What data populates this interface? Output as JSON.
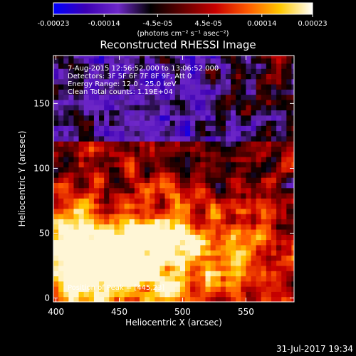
{
  "colorbar": {
    "ticks": [
      "-0.00023",
      "-0.00014",
      "-4.5e-05",
      "4.5e-05",
      "0.00014",
      "0.00023"
    ],
    "units": "(photons cm⁻² s⁻¹ asec⁻²)"
  },
  "colors": {
    "background": "#000000",
    "colormap_stops": [
      "#0000ff",
      "#3c00b4",
      "#6e28c8",
      "#000000",
      "#640000",
      "#c80000",
      "#ff5a00",
      "#ffc800",
      "#ffffff"
    ]
  },
  "chart_data": {
    "type": "heatmap",
    "title": "Reconstructed RHESSI Image",
    "xlabel": "Heliocentric X (arcsec)",
    "ylabel": "Heliocentric Y (arcsec)",
    "xlim": [
      398,
      588
    ],
    "ylim": [
      -3,
      187
    ],
    "x_ticks": [
      400,
      450,
      500,
      550
    ],
    "y_ticks": [
      0,
      50,
      100,
      150
    ],
    "x_tick_labels": [
      "400",
      "450",
      "500",
      "550"
    ],
    "y_tick_labels": [
      "0",
      "50",
      "100",
      "150"
    ],
    "value_range": [
      -0.00023,
      0.00023
    ],
    "annotations": [
      "7-Aug-2015 12:56:52.000 to 13:06:52.000",
      "Detectors: 3F 5F 6F 7F 8F 9F, Att 0",
      "Energy Range: 12.0 - 25.0 keV",
      "Clean     Total counts: 1.19E+04"
    ],
    "peak_label": "Position of Peak = [445,23]",
    "peak": [
      445,
      23
    ]
  },
  "footer": {
    "date": "31-Jul-2017 19:34"
  }
}
